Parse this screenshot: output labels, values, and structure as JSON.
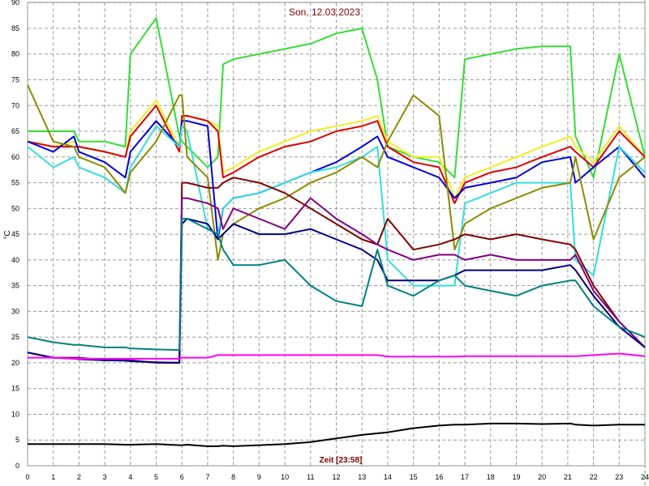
{
  "chart_data": {
    "type": "line",
    "title": "Son, 12.03.2023",
    "x_label": "Zeit [23:58]",
    "y_label": "°C",
    "x": [
      0,
      1,
      1.8,
      2,
      3,
      3.8,
      4,
      5,
      5.9,
      6,
      6.2,
      7,
      7.4,
      7.6,
      8,
      9,
      10,
      11,
      12,
      13,
      13.6,
      14,
      15,
      16,
      16.6,
      17,
      18,
      19,
      20,
      21.1,
      21.3,
      22,
      23,
      24
    ],
    "xlim": [
      0,
      24
    ],
    "xticks": [
      0,
      1,
      2,
      3,
      4,
      5,
      6,
      7,
      8,
      9,
      10,
      11,
      12,
      13,
      14,
      15,
      16,
      17,
      18,
      19,
      20,
      21,
      22,
      23,
      24
    ],
    "ylim": [
      0,
      90
    ],
    "yticks": [
      0,
      5,
      10,
      15,
      20,
      25,
      30,
      35,
      40,
      45,
      50,
      55,
      60,
      65,
      70,
      75,
      80,
      85,
      90
    ],
    "grid": true,
    "series": [
      {
        "color": "#33dd33",
        "values": [
          65,
          65,
          65,
          63,
          63,
          62,
          80,
          87,
          64,
          63,
          62,
          58,
          60,
          78,
          79,
          80,
          81,
          82,
          84,
          85,
          75,
          62,
          60,
          59,
          56,
          79,
          80,
          81,
          81.5,
          81.5,
          64,
          56,
          80,
          60
        ]
      },
      {
        "color": "#eeee22",
        "values": [
          63,
          62,
          63,
          62,
          61,
          60,
          65,
          71,
          62,
          68,
          68,
          67,
          66,
          57,
          58,
          61,
          63,
          65,
          66,
          67,
          68,
          63,
          60,
          60,
          52,
          56,
          58,
          60,
          62,
          64,
          62,
          59,
          66,
          60
        ]
      },
      {
        "color": "#dd0000",
        "values": [
          63,
          62,
          62,
          62,
          61,
          60,
          64,
          70,
          61,
          68,
          68,
          67,
          65,
          56,
          57,
          60,
          62,
          63,
          65,
          66,
          67,
          62,
          59,
          58,
          51,
          55,
          57,
          58,
          60,
          62,
          61,
          58,
          65,
          60
        ]
      },
      {
        "color": "#0000dd",
        "values": [
          63,
          61,
          64,
          61,
          59,
          56,
          61,
          67,
          62,
          67,
          67,
          66,
          44,
          50,
          52,
          53,
          55,
          57,
          59,
          62,
          64,
          60,
          58,
          56,
          52,
          54,
          55,
          56,
          59,
          60,
          55,
          58,
          62,
          56
        ]
      },
      {
        "color": "#33dddd",
        "values": [
          62,
          58,
          60,
          58,
          56,
          53,
          58,
          66,
          62,
          66,
          65,
          46,
          45,
          50,
          52,
          53,
          55,
          57,
          58,
          60,
          62,
          40,
          35,
          35,
          35,
          51,
          53,
          55,
          55,
          55,
          40,
          37,
          62,
          57
        ]
      },
      {
        "color": "#8b8b00",
        "values": [
          74,
          63,
          62,
          60,
          58,
          53,
          57,
          63,
          72,
          72,
          60,
          56,
          40,
          45,
          47,
          50,
          52,
          55,
          57,
          60,
          58,
          63,
          72,
          68,
          42,
          47,
          50,
          52,
          54,
          55,
          60,
          44,
          56,
          60
        ]
      },
      {
        "color": "#800000",
        "values": [
          22,
          21,
          21,
          21,
          20.5,
          20.5,
          20.5,
          20,
          20,
          55,
          55,
          54,
          54,
          55,
          56,
          55,
          53,
          50,
          47,
          44,
          43,
          48,
          42,
          43,
          44,
          45,
          44,
          45,
          44,
          43,
          42,
          35,
          28,
          23
        ]
      },
      {
        "color": "#800080",
        "values": [
          22,
          21,
          21,
          21,
          20.5,
          20.5,
          20.5,
          20,
          20,
          52,
          52,
          51,
          50,
          46,
          50,
          48,
          46,
          52,
          48,
          45,
          43,
          42,
          40,
          41,
          41,
          40,
          41,
          40,
          40,
          40,
          41,
          34,
          28,
          23
        ]
      },
      {
        "color": "#000080",
        "values": [
          22,
          21,
          20.8,
          20.7,
          20.5,
          20.4,
          20.3,
          20.1,
          20,
          47,
          48,
          47,
          44,
          45,
          47,
          45,
          45,
          46,
          44,
          42,
          40,
          36,
          36,
          36,
          37,
          38,
          38,
          38,
          38,
          39,
          38,
          33,
          27,
          23
        ]
      },
      {
        "color": "#008080",
        "values": [
          25,
          24,
          23.5,
          23.5,
          23,
          23,
          22.8,
          22.6,
          22.5,
          48,
          48,
          46,
          45,
          42,
          39,
          39,
          40,
          35,
          32,
          31,
          42,
          35,
          33,
          36,
          37,
          35,
          34,
          33,
          35,
          36,
          36,
          31,
          27,
          25
        ]
      },
      {
        "color": "#ff00ff",
        "values": [
          21,
          21,
          20.8,
          20.8,
          20.8,
          20.8,
          20.8,
          20.8,
          20.8,
          21,
          21,
          21,
          21.5,
          21.5,
          21.5,
          21.5,
          21.5,
          21.5,
          21.5,
          21.5,
          21.5,
          21.2,
          21.2,
          21.2,
          21.2,
          21.3,
          21.3,
          21.3,
          21.3,
          21.3,
          21.3,
          21.5,
          21.8,
          21.3
        ]
      },
      {
        "color": "#000000",
        "values": [
          4.2,
          4.2,
          4.2,
          4.2,
          4.2,
          4.1,
          4.1,
          4.2,
          4.0,
          4.0,
          4.1,
          3.8,
          3.8,
          3.9,
          3.8,
          4.0,
          4.2,
          4.6,
          5.3,
          6.0,
          6.3,
          6.5,
          7.3,
          7.8,
          8.0,
          8.0,
          8.2,
          8.2,
          8.1,
          8.2,
          8.0,
          7.8,
          8.0,
          8.0
        ]
      }
    ]
  }
}
